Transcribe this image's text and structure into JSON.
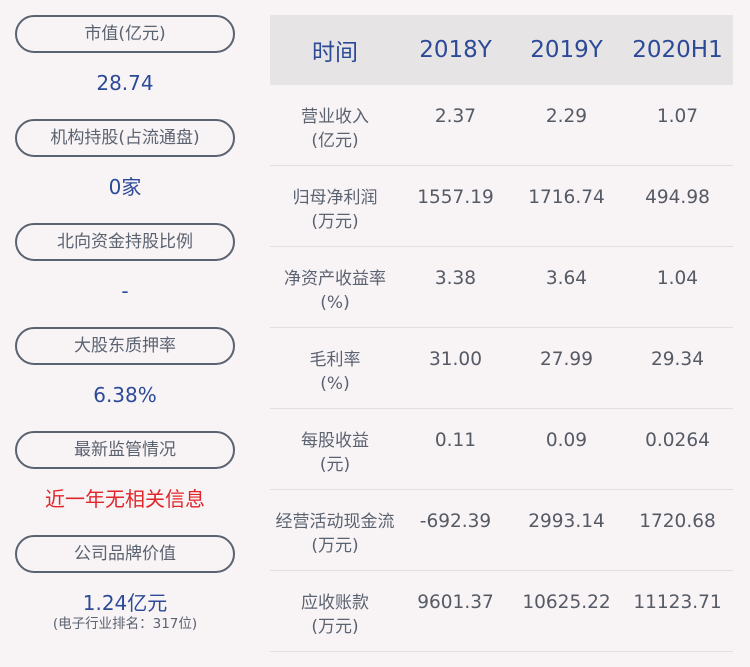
{
  "left": [
    {
      "label": "市值(亿元)",
      "value": "28.74"
    },
    {
      "label": "机构持股(占流通盘)",
      "value": "0家"
    },
    {
      "label": "北向资金持股比例",
      "value": "-"
    },
    {
      "label": "大股东质押率",
      "value": "6.38%"
    },
    {
      "label": "最新监管情况",
      "value": "近一年无相关信息"
    },
    {
      "label": "公司品牌价值",
      "value": "1.24亿元",
      "note": "(电子行业排名：317位)"
    }
  ],
  "colors": {
    "accent": "#2c4a98",
    "alert": "#e1262b",
    "pill_border": "#5b6270"
  },
  "table": {
    "headers": [
      "时间",
      "2018Y",
      "2019Y",
      "2020H1"
    ],
    "rows": [
      {
        "name": "营业收入",
        "unit": "(亿元)",
        "values": [
          "2.37",
          "2.29",
          "1.07"
        ]
      },
      {
        "name": "归母净利润",
        "unit": "(万元)",
        "values": [
          "1557.19",
          "1716.74",
          "494.98"
        ]
      },
      {
        "name": "净资产收益率",
        "unit": "(%)",
        "values": [
          "3.38",
          "3.64",
          "1.04"
        ]
      },
      {
        "name": "毛利率",
        "unit": "(%)",
        "values": [
          "31.00",
          "27.99",
          "29.34"
        ]
      },
      {
        "name": "每股收益",
        "unit": "(元)",
        "values": [
          "0.11",
          "0.09",
          "0.0264"
        ]
      },
      {
        "name": "经营活动现金流",
        "unit": "(万元)",
        "values": [
          "-692.39",
          "2993.14",
          "1720.68"
        ]
      },
      {
        "name": "应收账款",
        "unit": "(万元)",
        "values": [
          "9601.37",
          "10625.22",
          "11123.71"
        ]
      }
    ]
  }
}
